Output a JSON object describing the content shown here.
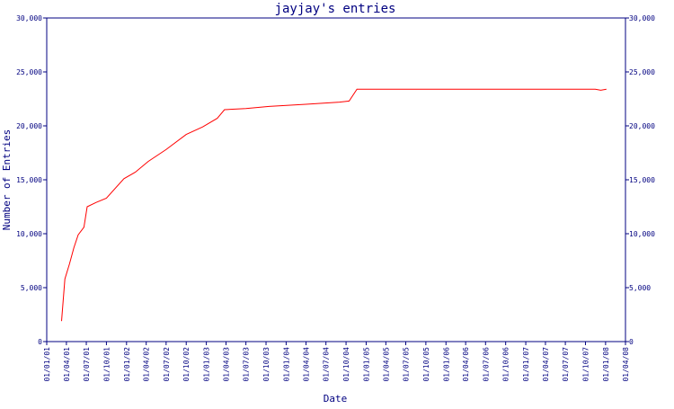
{
  "chart_data": {
    "type": "line",
    "title": "jayjay's entries",
    "xlabel": "Date",
    "ylabel": "Number of Entries",
    "ylim": [
      0,
      30000
    ],
    "y_ticks": [
      "0",
      "5,000",
      "10,000",
      "15,000",
      "20,000",
      "25,000",
      "30,000"
    ],
    "y_tick_values": [
      0,
      5000,
      10000,
      15000,
      20000,
      25000,
      30000
    ],
    "x_ticks": [
      "01/01/01",
      "01/04/01",
      "01/07/01",
      "01/10/01",
      "01/01/02",
      "01/04/02",
      "01/07/02",
      "01/10/02",
      "01/01/03",
      "01/04/03",
      "01/07/03",
      "01/10/03",
      "01/01/04",
      "01/04/04",
      "01/07/04",
      "01/10/04",
      "01/01/05",
      "01/04/05",
      "01/07/05",
      "01/10/05",
      "01/01/06",
      "01/04/06",
      "01/07/06",
      "01/10/06",
      "01/01/07",
      "01/04/07",
      "01/07/07",
      "01/10/07",
      "01/01/08",
      "01/04/08"
    ],
    "line_color": "#ff0000",
    "axis_color": "#000080",
    "grid": false,
    "right_axis": true,
    "series": [
      {
        "points": [
          [
            "2001-03-10",
            1900
          ],
          [
            "2001-03-25",
            5800
          ],
          [
            "2001-04-15",
            7200
          ],
          [
            "2001-05-05",
            8700
          ],
          [
            "2001-05-25",
            9900
          ],
          [
            "2001-06-20",
            10600
          ],
          [
            "2001-07-05",
            12500
          ],
          [
            "2001-08-15",
            12900
          ],
          [
            "2001-10-01",
            13300
          ],
          [
            "2001-12-20",
            15100
          ],
          [
            "2002-02-10",
            15700
          ],
          [
            "2002-04-10",
            16700
          ],
          [
            "2002-07-01",
            17800
          ],
          [
            "2002-10-01",
            19200
          ],
          [
            "2002-12-15",
            19900
          ],
          [
            "2003-02-20",
            20700
          ],
          [
            "2003-03-25",
            21500
          ],
          [
            "2003-07-01",
            21600
          ],
          [
            "2003-10-15",
            21800
          ],
          [
            "2004-04-01",
            22000
          ],
          [
            "2004-09-01",
            22200
          ],
          [
            "2004-10-15",
            22300
          ],
          [
            "2004-11-20",
            23400
          ],
          [
            "2007-11-15",
            23400
          ],
          [
            "2007-12-10",
            23300
          ],
          [
            "2008-01-05",
            23400
          ]
        ]
      }
    ]
  }
}
